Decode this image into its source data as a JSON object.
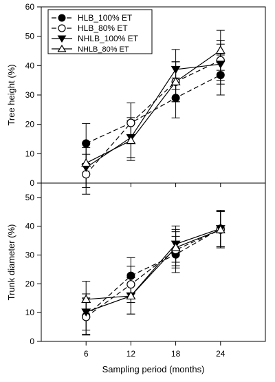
{
  "chart_data": [
    {
      "type": "line",
      "panel": "top",
      "xlabel": "",
      "ylabel": "Tree height (%)",
      "x": [
        6,
        12,
        18,
        24
      ],
      "xlim": [
        0,
        30
      ],
      "ylim": [
        0,
        60
      ],
      "yticks": [
        0,
        10,
        20,
        30,
        40,
        50,
        60
      ],
      "legend_position": "top-left",
      "series": [
        {
          "name": "HLB_100% ET",
          "marker": "filled-circle",
          "line": "long-dash",
          "values": [
            13.5,
            20.5,
            29,
            36.8
          ],
          "errors": [
            6.8,
            6.8,
            6.8,
            6.8
          ]
        },
        {
          "name": "HLB_80% ET",
          "marker": "open-circle",
          "line": "long-dash",
          "values": [
            3,
            20.5,
            34.5,
            41.8
          ],
          "errors": [
            6.8,
            6.8,
            6.8,
            6.8
          ]
        },
        {
          "name": "NHLB_100% ET",
          "marker": "filled-triangle-down",
          "line": "solid",
          "values": [
            5.3,
            15.5,
            38.7,
            40.5
          ],
          "errors": [
            6.8,
            6.8,
            6.8,
            6.8
          ]
        },
        {
          "name": "NHLB_80% ET",
          "marker": "open-triangle-up",
          "line": "solid",
          "values": [
            6.8,
            14.5,
            34.5,
            45.2
          ],
          "errors": [
            6.8,
            6.8,
            6.8,
            6.8
          ]
        }
      ]
    },
    {
      "type": "line",
      "panel": "bottom",
      "xlabel": "Sampling period (months)",
      "ylabel": "Trunk diameter (%)",
      "x": [
        6,
        12,
        18,
        24
      ],
      "xticks": [
        6,
        12,
        18,
        24
      ],
      "xlim": [
        0,
        30
      ],
      "ylim": [
        0,
        55
      ],
      "yticks": [
        0,
        10,
        20,
        30,
        40,
        50
      ],
      "series": [
        {
          "name": "HLB_100% ET",
          "marker": "filled-circle",
          "line": "long-dash",
          "values": [
            8.8,
            22.8,
            30.2,
            39.2
          ],
          "errors": [
            6.3,
            6.3,
            6.3,
            6.3
          ]
        },
        {
          "name": "HLB_80% ET",
          "marker": "open-circle",
          "line": "long-dash",
          "values": [
            8.5,
            19.8,
            31.8,
            38.8
          ],
          "errors": [
            6.3,
            6.3,
            6.3,
            6.3
          ]
        },
        {
          "name": "NHLB_100% ET",
          "marker": "filled-triangle-down",
          "line": "solid",
          "values": [
            10.2,
            15.8,
            33.8,
            39.2
          ],
          "errors": [
            6.3,
            6.3,
            6.3,
            6.3
          ]
        },
        {
          "name": "NHLB_80% ET",
          "marker": "open-triangle-up",
          "line": "solid",
          "values": [
            14.6,
            15.8,
            32.6,
            38.8
          ],
          "errors": [
            6.3,
            6.3,
            6.3,
            6.3
          ]
        }
      ]
    }
  ]
}
